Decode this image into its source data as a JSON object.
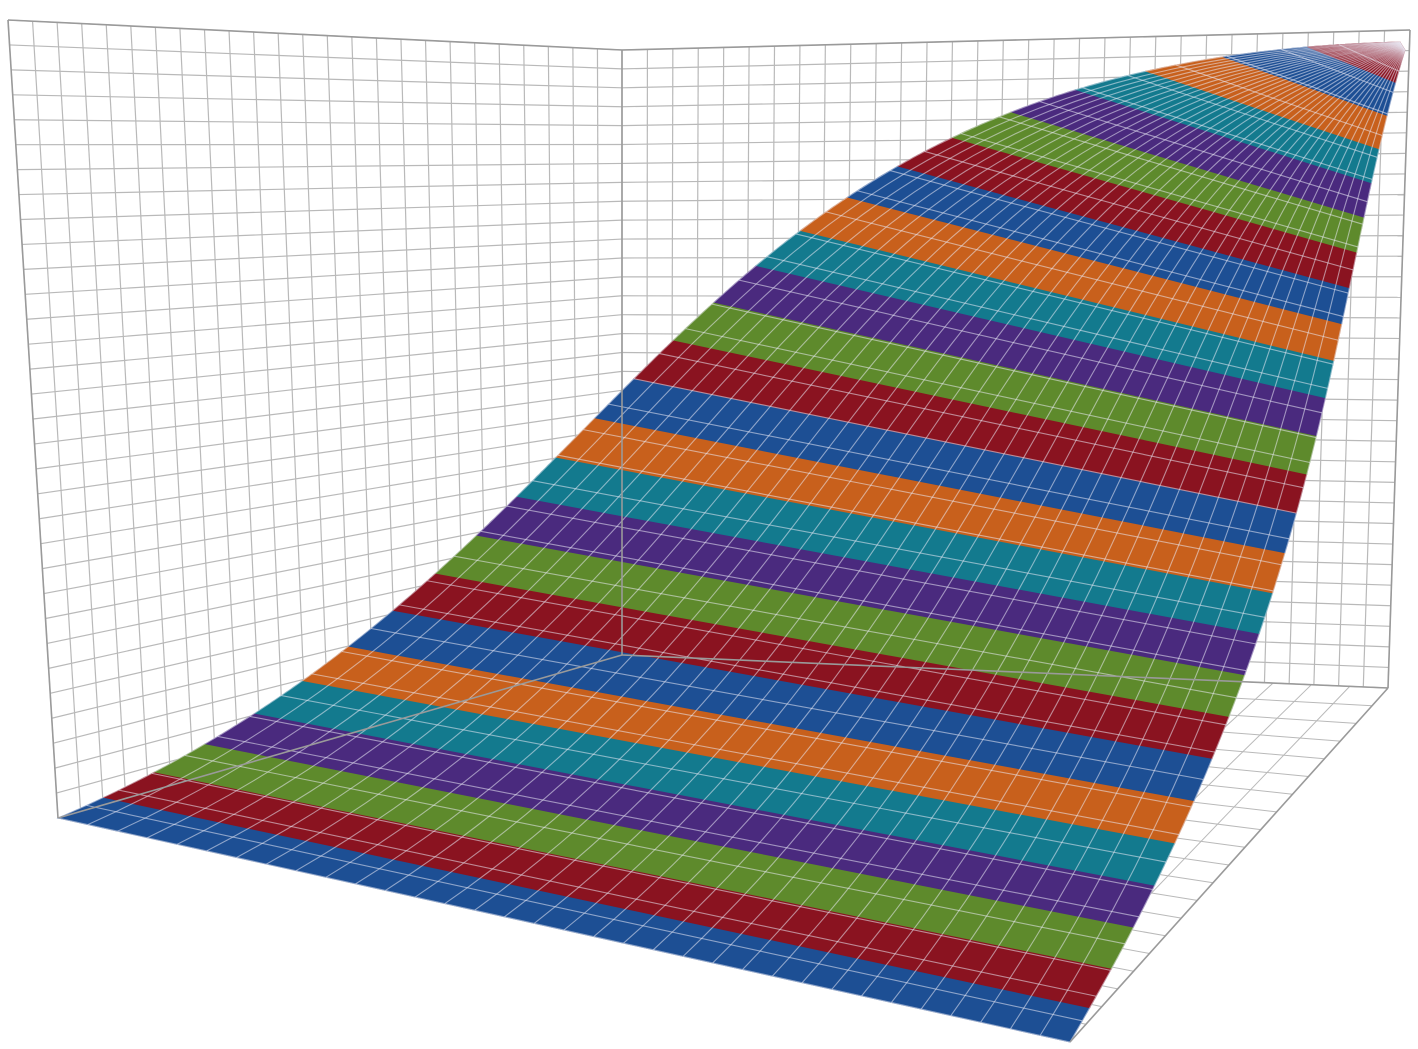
{
  "chart_data": {
    "type": "surface",
    "title": "",
    "xlabel": "",
    "ylabel": "",
    "zlabel": "",
    "legend": "none",
    "grid": true,
    "tick_labels": false,
    "band_count": 26,
    "band_colors": [
      "#1d4f94",
      "#8a1320",
      "#5e8a2c",
      "#4a2a7e",
      "#137a8e",
      "#c8601c"
    ],
    "surface_shape": "sigmoid step rising from flat floor at front-left to plateau at back-right"
  }
}
